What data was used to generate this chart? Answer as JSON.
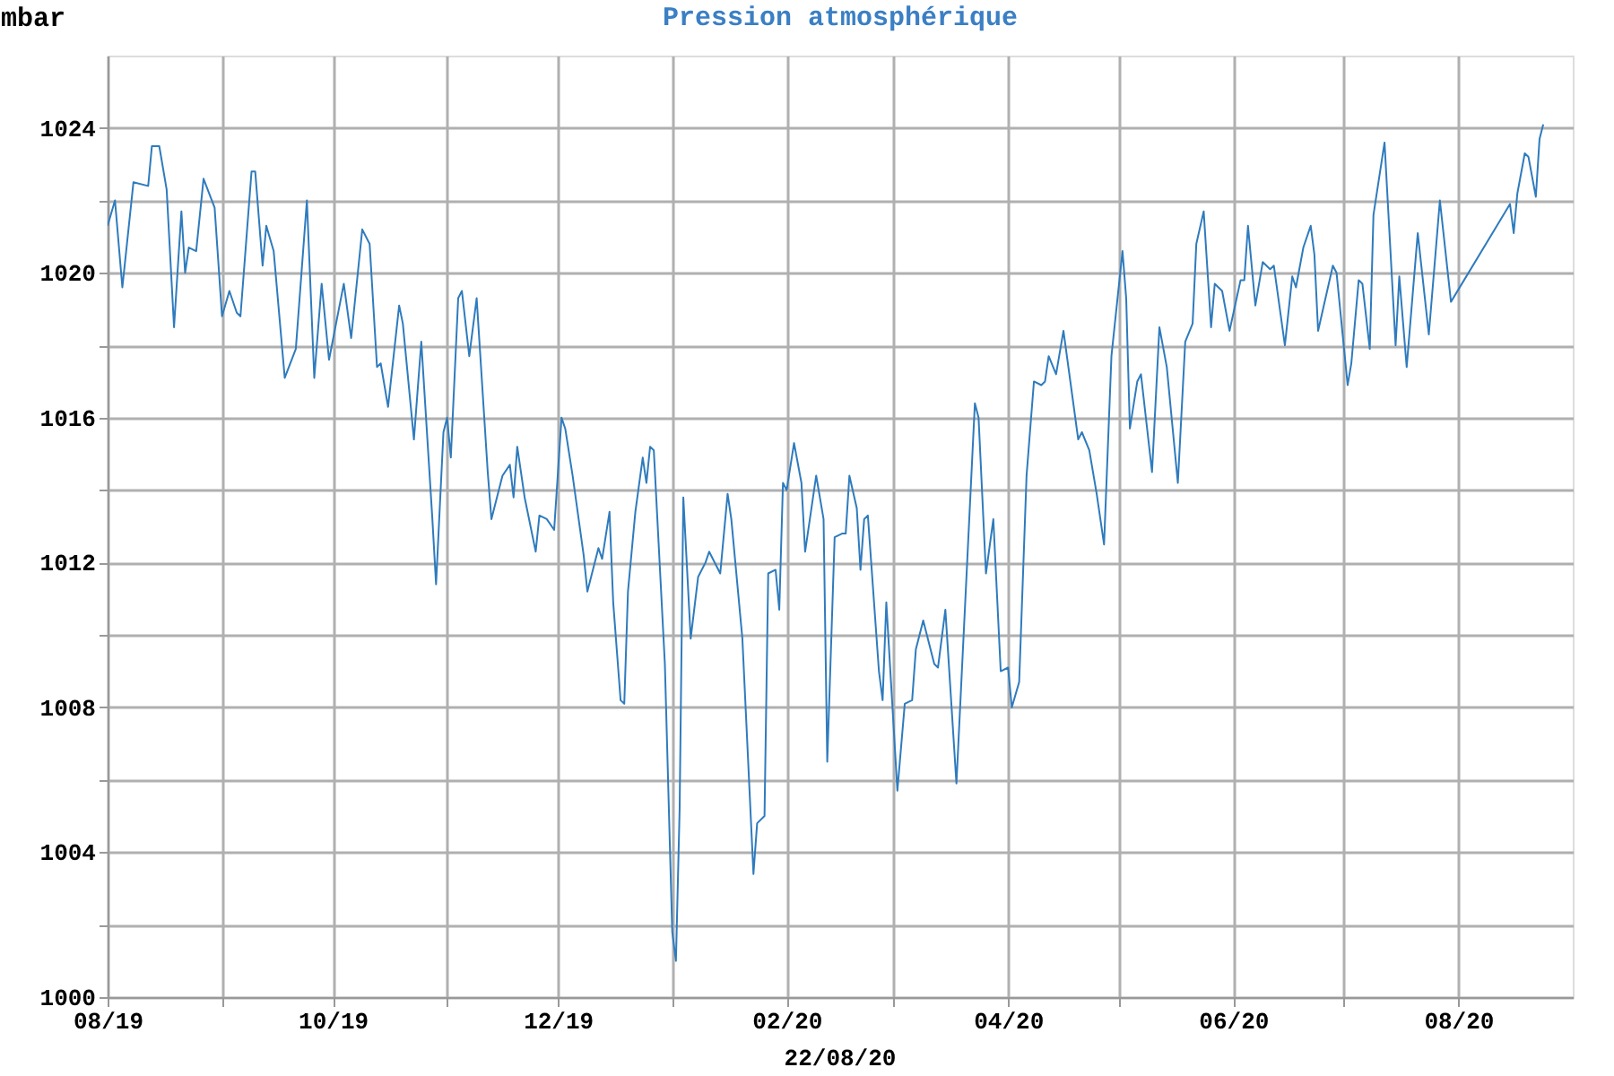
{
  "chart_data": {
    "type": "line",
    "title": "Pression atmosphérique",
    "ylabel": "mbar",
    "annotations": [
      "22/08/20"
    ],
    "x": [
      "2019-08-01",
      "2019-08-03",
      "2019-08-05",
      "2019-08-08",
      "2019-08-12",
      "2019-08-13",
      "2019-08-15",
      "2019-08-17",
      "2019-08-19",
      "2019-08-21",
      "2019-08-22",
      "2019-08-23",
      "2019-08-25",
      "2019-08-27",
      "2019-08-30",
      "2019-09-01",
      "2019-09-03",
      "2019-09-05",
      "2019-09-06",
      "2019-09-09",
      "2019-09-10",
      "2019-09-12",
      "2019-09-13",
      "2019-09-15",
      "2019-09-18",
      "2019-09-21",
      "2019-09-24",
      "2019-09-26",
      "2019-09-28",
      "2019-09-30",
      "2019-10-04",
      "2019-10-06",
      "2019-10-09",
      "2019-10-11",
      "2019-10-13",
      "2019-10-14",
      "2019-10-16",
      "2019-10-19",
      "2019-10-20",
      "2019-10-23",
      "2019-10-25",
      "2019-10-28",
      "2019-10-29",
      "2019-10-31",
      "2019-11-01",
      "2019-11-02",
      "2019-11-04",
      "2019-11-05",
      "2019-11-07",
      "2019-11-09",
      "2019-11-12",
      "2019-11-13",
      "2019-11-16",
      "2019-11-18",
      "2019-11-19",
      "2019-11-20",
      "2019-11-22",
      "2019-11-25",
      "2019-11-26",
      "2019-11-28",
      "2019-11-30",
      "2019-12-02",
      "2019-12-03",
      "2019-12-05",
      "2019-12-08",
      "2019-12-09",
      "2019-12-12",
      "2019-12-13",
      "2019-12-15",
      "2019-12-16",
      "2019-12-18",
      "2019-12-19",
      "2019-12-20",
      "2019-12-22",
      "2019-12-24",
      "2019-12-25",
      "2019-12-26",
      "2019-12-27",
      "2019-12-30",
      "2020-01-01",
      "2020-01-02",
      "2020-01-03",
      "2020-01-04",
      "2020-01-06",
      "2020-01-08",
      "2020-01-10",
      "2020-01-11",
      "2020-01-14",
      "2020-01-16",
      "2020-01-17",
      "2020-01-20",
      "2020-01-23",
      "2020-01-24",
      "2020-01-26",
      "2020-01-27",
      "2020-01-29",
      "2020-01-30",
      "2020-01-31",
      "2020-02-01",
      "2020-02-03",
      "2020-02-05",
      "2020-02-06",
      "2020-02-09",
      "2020-02-11",
      "2020-02-12",
      "2020-02-14",
      "2020-02-16",
      "2020-02-17",
      "2020-02-18",
      "2020-02-20",
      "2020-02-21",
      "2020-02-22",
      "2020-02-23",
      "2020-02-26",
      "2020-02-27",
      "2020-02-28",
      "2020-03-02",
      "2020-03-04",
      "2020-03-06",
      "2020-03-07",
      "2020-03-09",
      "2020-03-12",
      "2020-03-13",
      "2020-03-15",
      "2020-03-18",
      "2020-03-21",
      "2020-03-23",
      "2020-03-24",
      "2020-03-26",
      "2020-03-28",
      "2020-03-30",
      "2020-04-01",
      "2020-04-02",
      "2020-04-04",
      "2020-04-06",
      "2020-04-08",
      "2020-04-10",
      "2020-04-11",
      "2020-04-12",
      "2020-04-14",
      "2020-04-16",
      "2020-04-18",
      "2020-04-20",
      "2020-04-21",
      "2020-04-23",
      "2020-04-25",
      "2020-04-27",
      "2020-04-29",
      "2020-05-02",
      "2020-05-03",
      "2020-05-04",
      "2020-05-06",
      "2020-05-07",
      "2020-05-10",
      "2020-05-12",
      "2020-05-14",
      "2020-05-17",
      "2020-05-19",
      "2020-05-21",
      "2020-05-22",
      "2020-05-24",
      "2020-05-26",
      "2020-05-27",
      "2020-05-29",
      "2020-05-31",
      "2020-06-03",
      "2020-06-04",
      "2020-06-05",
      "2020-06-07",
      "2020-06-09",
      "2020-06-11",
      "2020-06-12",
      "2020-06-15",
      "2020-06-17",
      "2020-06-18",
      "2020-06-20",
      "2020-06-22",
      "2020-06-23",
      "2020-06-24",
      "2020-06-28",
      "2020-06-29",
      "2020-07-02",
      "2020-07-03",
      "2020-07-05",
      "2020-07-06",
      "2020-07-08",
      "2020-07-09",
      "2020-07-12",
      "2020-07-15",
      "2020-07-16",
      "2020-07-18",
      "2020-07-21",
      "2020-07-24",
      "2020-07-27",
      "2020-07-30",
      "2020-08-15",
      "2020-08-16",
      "2020-08-17",
      "2020-08-19",
      "2020-08-20",
      "2020-08-22",
      "2020-08-23",
      "2020-08-24"
    ],
    "series": [
      {
        "color": "#2f7bbd",
        "values": [
          1021.3,
          1022.0,
          1019.6,
          1022.5,
          1022.4,
          1023.5,
          1023.5,
          1022.3,
          1018.5,
          1021.7,
          1020.0,
          1020.7,
          1020.6,
          1022.6,
          1021.8,
          1018.8,
          1019.5,
          1018.9,
          1018.8,
          1022.8,
          1022.8,
          1020.2,
          1021.3,
          1020.6,
          1017.1,
          1017.9,
          1022.0,
          1017.1,
          1019.7,
          1017.6,
          1019.7,
          1018.2,
          1021.2,
          1020.8,
          1017.4,
          1017.5,
          1016.3,
          1019.1,
          1018.6,
          1015.4,
          1018.1,
          1013.2,
          1011.4,
          1015.6,
          1016.0,
          1014.9,
          1019.3,
          1019.5,
          1017.7,
          1019.3,
          1014.5,
          1013.2,
          1014.4,
          1014.7,
          1013.8,
          1015.2,
          1013.8,
          1012.3,
          1013.3,
          1013.2,
          1012.9,
          1016.0,
          1015.7,
          1014.4,
          1012.2,
          1011.2,
          1012.4,
          1012.1,
          1013.4,
          1010.9,
          1008.2,
          1008.1,
          1011.2,
          1013.4,
          1014.9,
          1014.2,
          1015.2,
          1015.1,
          1009.2,
          1001.8,
          1001.0,
          1005.2,
          1013.8,
          1009.9,
          1011.6,
          1012.0,
          1012.3,
          1011.7,
          1013.9,
          1013.2,
          1009.9,
          1003.4,
          1004.8,
          1005.0,
          1011.7,
          1011.8,
          1010.7,
          1014.2,
          1014.0,
          1015.3,
          1014.2,
          1012.3,
          1014.4,
          1013.2,
          1006.5,
          1012.7,
          1012.8,
          1012.8,
          1014.4,
          1013.5,
          1011.8,
          1013.2,
          1013.3,
          1009.0,
          1008.2,
          1010.9,
          1005.7,
          1008.1,
          1008.2,
          1009.6,
          1010.4,
          1009.2,
          1009.1,
          1010.7,
          1005.9,
          1012.2,
          1016.4,
          1016.0,
          1011.7,
          1013.2,
          1009.0,
          1009.1,
          1008.0,
          1008.7,
          1014.4,
          1017.0,
          1016.9,
          1017.0,
          1017.7,
          1017.2,
          1018.4,
          1016.9,
          1015.4,
          1015.6,
          1015.1,
          1013.9,
          1012.5,
          1017.7,
          1020.6,
          1019.3,
          1015.7,
          1017.0,
          1017.2,
          1014.5,
          1018.5,
          1017.4,
          1014.2,
          1018.1,
          1018.6,
          1020.8,
          1021.7,
          1018.5,
          1019.7,
          1019.5,
          1018.4,
          1019.8,
          1019.8,
          1021.3,
          1019.1,
          1020.3,
          1020.1,
          1020.2,
          1018.0,
          1019.9,
          1019.6,
          1020.7,
          1021.3,
          1020.5,
          1018.4,
          1020.2,
          1020.0,
          1016.9,
          1017.5,
          1019.8,
          1019.7,
          1017.9,
          1021.6,
          1023.6,
          1018.0,
          1019.9,
          1017.4,
          1021.1,
          1018.3,
          1022.0,
          1019.2,
          1021.9,
          1021.1,
          1022.2,
          1023.3,
          1023.2,
          1022.1,
          1023.7,
          1024.1
        ]
      }
    ],
    "xlim": [
      "2019-08-01",
      "2020-09-01"
    ],
    "xticks": [
      {
        "value": "2019-08-01",
        "label": "08/19"
      },
      {
        "value": "2019-09-01",
        "label": null
      },
      {
        "value": "2019-10-01",
        "label": "10/19"
      },
      {
        "value": "2019-11-01",
        "label": null
      },
      {
        "value": "2019-12-01",
        "label": "12/19"
      },
      {
        "value": "2020-01-01",
        "label": null
      },
      {
        "value": "2020-02-01",
        "label": "02/20"
      },
      {
        "value": "2020-03-01",
        "label": null
      },
      {
        "value": "2020-04-01",
        "label": "04/20"
      },
      {
        "value": "2020-05-01",
        "label": null
      },
      {
        "value": "2020-06-01",
        "label": "06/20"
      },
      {
        "value": "2020-07-01",
        "label": null
      },
      {
        "value": "2020-08-01",
        "label": "08/20"
      }
    ],
    "ylim": [
      1000,
      1026
    ],
    "yticks": [
      1000,
      {
        "value": 1002,
        "label": null
      },
      1004,
      {
        "value": 1006,
        "label": null
      },
      1008,
      {
        "value": 1010,
        "label": null
      },
      1012,
      {
        "value": 1014,
        "label": null
      },
      1016,
      {
        "value": 1018,
        "label": null
      },
      1020,
      {
        "value": 1022,
        "label": null
      },
      1024
    ],
    "grid": true,
    "marker": "none",
    "line_style": "solid"
  }
}
